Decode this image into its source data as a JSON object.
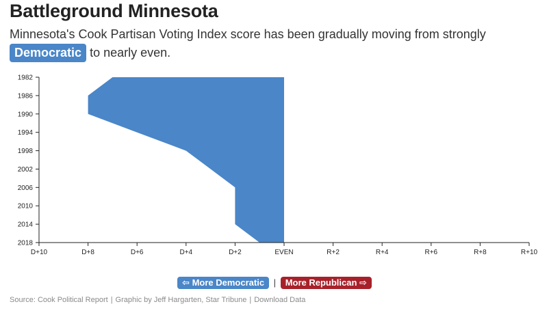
{
  "header": {
    "title": "Battleground Minnesota",
    "subtitle_before": "Minnesota's Cook Partisan Voting Index score has been gradually moving from strongly",
    "subtitle_highlight": "Democratic",
    "subtitle_after": "to nearly even."
  },
  "legend": {
    "more_democratic": "⇦ More Democratic",
    "separator": "|",
    "more_republican": "More Republican ⇨"
  },
  "footer": {
    "source": "Source: Cook Political Report",
    "graphic": "Graphic by Jeff Hargarten, Star Tribune",
    "download": "Download Data",
    "separator": "|"
  },
  "colors": {
    "democratic": "#4a86c8",
    "republican": "#a8212a"
  },
  "chart_data": {
    "type": "area",
    "title": "",
    "xlabel": "",
    "ylabel": "",
    "x_axis": {
      "min": -10,
      "max": 10,
      "ticks": [
        -10,
        -8,
        -6,
        -4,
        -2,
        0,
        2,
        4,
        6,
        8,
        10
      ],
      "tick_labels": [
        "D+10",
        "D+8",
        "D+6",
        "D+4",
        "D+2",
        "EVEN",
        "R+2",
        "R+4",
        "R+6",
        "R+8",
        "R+10"
      ]
    },
    "y_axis": {
      "min": 1982,
      "max": 2018,
      "ticks": [
        1982,
        1986,
        1990,
        1994,
        1998,
        2002,
        2006,
        2010,
        2014,
        2018
      ],
      "tick_labels": [
        "1982",
        "1986",
        "1990",
        "1994",
        "1998",
        "2002",
        "2006",
        "2010",
        "2014",
        "2018"
      ]
    },
    "series": [
      {
        "fill": "#4a86c8",
        "baseline": 0,
        "points": [
          {
            "year": 1982,
            "pvi": -7
          },
          {
            "year": 1986,
            "pvi": -8
          },
          {
            "year": 1990,
            "pvi": -8
          },
          {
            "year": 1994,
            "pvi": -6
          },
          {
            "year": 1998,
            "pvi": -4
          },
          {
            "year": 2002,
            "pvi": -3
          },
          {
            "year": 2006,
            "pvi": -2
          },
          {
            "year": 2010,
            "pvi": -2
          },
          {
            "year": 2014,
            "pvi": -2
          },
          {
            "year": 2018,
            "pvi": -1
          }
        ]
      }
    ],
    "grid": false
  }
}
